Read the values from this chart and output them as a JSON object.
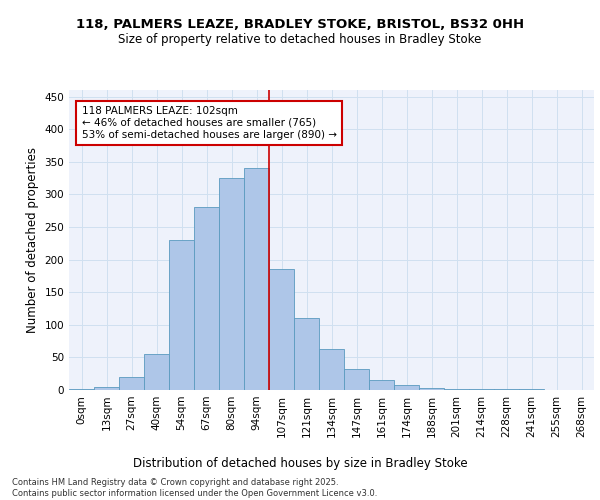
{
  "title1": "118, PALMERS LEAZE, BRADLEY STOKE, BRISTOL, BS32 0HH",
  "title2": "Size of property relative to detached houses in Bradley Stoke",
  "xlabel": "Distribution of detached houses by size in Bradley Stoke",
  "ylabel": "Number of detached properties",
  "bar_labels": [
    "0sqm",
    "13sqm",
    "27sqm",
    "40sqm",
    "54sqm",
    "67sqm",
    "80sqm",
    "94sqm",
    "107sqm",
    "121sqm",
    "134sqm",
    "147sqm",
    "161sqm",
    "174sqm",
    "188sqm",
    "201sqm",
    "214sqm",
    "228sqm",
    "241sqm",
    "255sqm",
    "268sqm"
  ],
  "bar_values": [
    2,
    5,
    20,
    55,
    230,
    280,
    325,
    340,
    185,
    110,
    63,
    32,
    15,
    8,
    3,
    2,
    1,
    1,
    1,
    0,
    0
  ],
  "bar_color": "#aec6e8",
  "bar_edge_color": "#5a9abf",
  "grid_color": "#d0e0f0",
  "background_color": "#eef2fb",
  "vline_x_index": 8,
  "vline_color": "#cc0000",
  "annotation_text": "118 PALMERS LEAZE: 102sqm\n← 46% of detached houses are smaller (765)\n53% of semi-detached houses are larger (890) →",
  "annotation_box_color": "#ffffff",
  "annotation_box_edge": "#cc0000",
  "ylim": [
    0,
    460
  ],
  "yticks": [
    0,
    50,
    100,
    150,
    200,
    250,
    300,
    350,
    400,
    450
  ],
  "footer": "Contains HM Land Registry data © Crown copyright and database right 2025.\nContains public sector information licensed under the Open Government Licence v3.0.",
  "title_fontsize": 9.5,
  "subtitle_fontsize": 8.5,
  "tick_fontsize": 7.5,
  "ylabel_fontsize": 8.5,
  "xlabel_fontsize": 8.5,
  "footer_fontsize": 6,
  "annotation_fontsize": 7.5
}
